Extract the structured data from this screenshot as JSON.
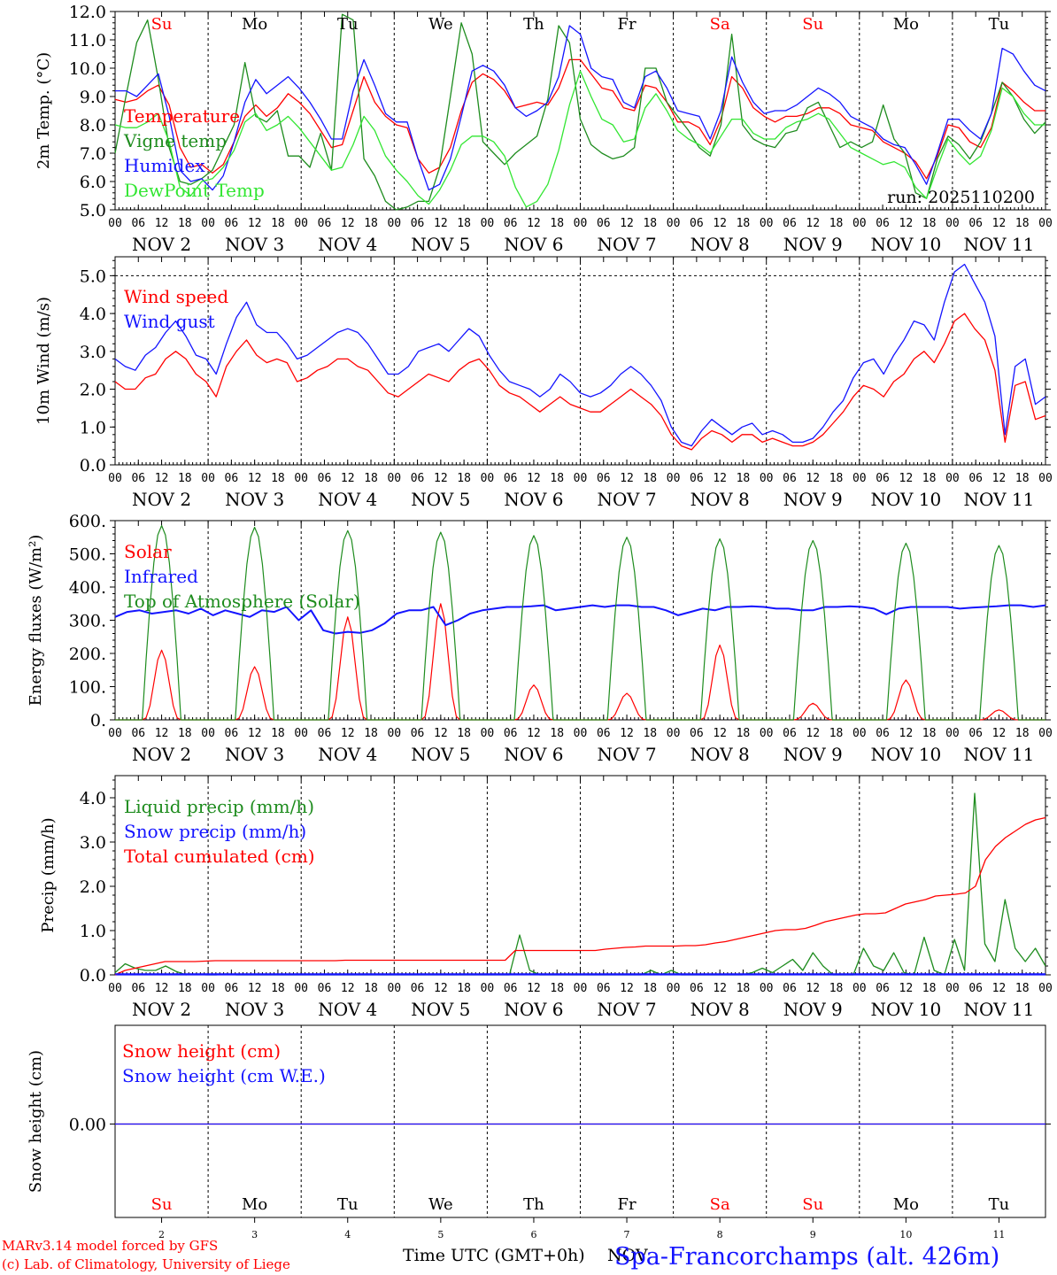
{
  "colors": {
    "red": "#ff0000",
    "green": "#1e8c1e",
    "blue": "#1414ff",
    "lightgreen": "#32e632",
    "black": "#000000"
  },
  "footer": {
    "credit_line1": "MARv3.14 model forced by GFS",
    "credit_line2": "(c) Lab. of Climatology, University of Liege",
    "xlabel": "Time UTC (GMT+0h)",
    "month": "NOV",
    "station": "Spa-Francorchamps (alt. 426m)"
  },
  "days": {
    "weekdays": [
      "Su",
      "Mo",
      "Tu",
      "We",
      "Th",
      "Fr",
      "Sa",
      "Su",
      "Mo",
      "Tu"
    ],
    "weekday_colors": [
      "red",
      "black",
      "black",
      "black",
      "black",
      "black",
      "red",
      "red",
      "black",
      "black"
    ],
    "date_labels": [
      "NOV  2",
      "NOV  3",
      "NOV  4",
      "NOV  5",
      "NOV  6",
      "NOV  7",
      "NOV  8",
      "NOV  9",
      "NOV 10",
      "NOV 11"
    ],
    "day_numbers": [
      "2",
      "3",
      "4",
      "5",
      "6",
      "7",
      "8",
      "9",
      "10",
      "11"
    ],
    "hour_ticks": [
      "00",
      "06",
      "12",
      "18"
    ],
    "final_tick": "00"
  },
  "chart_data": [
    {
      "type": "line",
      "id": "temp",
      "ylabel": "2m Temp. (°C)",
      "ylim": [
        5.0,
        12.0
      ],
      "yticks": [
        "5.0",
        "6.0",
        "7.0",
        "8.0",
        "9.0",
        "10.0",
        "11.0",
        "12.0"
      ],
      "ytick_values": [
        5,
        6,
        7,
        8,
        9,
        10,
        11,
        12
      ],
      "x_hours_step": 3,
      "annotation": "run: 2025110200",
      "series": [
        {
          "name": "Temperature",
          "color": "red",
          "values": [
            8.9,
            8.8,
            8.9,
            9.2,
            9.4,
            8.7,
            7.2,
            6.5,
            6.6,
            6.3,
            6.6,
            7.4,
            8.3,
            8.7,
            8.3,
            8.6,
            9.1,
            8.8,
            8.4,
            7.8,
            7.2,
            7.3,
            8.5,
            9.7,
            8.8,
            8.3,
            8.0,
            7.9,
            6.8,
            6.3,
            6.5,
            7.2,
            8.5,
            9.5,
            9.8,
            9.6,
            9.2,
            8.6,
            8.7,
            8.8,
            8.7,
            9.3,
            10.3,
            10.3,
            9.8,
            9.3,
            9.2,
            8.6,
            8.5,
            9.4,
            9.3,
            8.8,
            8.1,
            8.1,
            7.9,
            7.3,
            8.2,
            9.7,
            9.3,
            8.6,
            8.3,
            8.1,
            8.3,
            8.3,
            8.4,
            8.6,
            8.6,
            8.4,
            8.0,
            7.9,
            7.8,
            7.4,
            7.2,
            7.0,
            6.7,
            6.1,
            6.9,
            8.0,
            7.9,
            7.4,
            7.2,
            7.9,
            9.5,
            9.2,
            8.8,
            8.5,
            8.5
          ]
        },
        {
          "name": "Vigne temp",
          "color": "green",
          "values": [
            7.0,
            9.0,
            10.9,
            11.7,
            9.6,
            7.2,
            6.0,
            5.9,
            6.1,
            6.4,
            7.2,
            8.0,
            10.2,
            8.3,
            8.1,
            8.5,
            6.9,
            6.9,
            6.5,
            7.7,
            6.4,
            11.9,
            11.7,
            6.8,
            6.2,
            5.3,
            4.3,
            5.1,
            5.3,
            5.3,
            6.5,
            9.0,
            11.6,
            10.5,
            7.4,
            7.0,
            6.6,
            7.0,
            7.3,
            7.6,
            8.9,
            11.5,
            10.9,
            8.2,
            7.3,
            7.0,
            6.8,
            6.9,
            7.2,
            10.0,
            10.0,
            8.8,
            8.3,
            7.8,
            7.2,
            6.9,
            8.0,
            11.2,
            8.0,
            7.5,
            7.3,
            7.2,
            7.7,
            7.8,
            8.6,
            8.8,
            8.0,
            7.2,
            7.4,
            7.2,
            7.4,
            8.7,
            7.5,
            7.0,
            5.6,
            5.4,
            6.8,
            7.6,
            7.3,
            6.8,
            7.4,
            8.4,
            9.5,
            9.0,
            8.2,
            7.7,
            8.1
          ]
        },
        {
          "name": "Humidex",
          "color": "blue",
          "values": [
            9.2,
            9.2,
            9.0,
            9.4,
            9.8,
            8.3,
            6.4,
            6.0,
            6.1,
            5.7,
            6.2,
            7.4,
            8.8,
            9.6,
            9.1,
            9.4,
            9.7,
            9.3,
            8.8,
            8.2,
            7.5,
            7.5,
            9.2,
            10.3,
            9.4,
            8.4,
            8.1,
            8.1,
            6.8,
            5.7,
            5.9,
            6.8,
            8.3,
            9.9,
            10.1,
            9.9,
            9.4,
            8.6,
            8.3,
            8.5,
            8.8,
            9.7,
            11.5,
            11.2,
            10.0,
            9.7,
            9.6,
            8.8,
            8.6,
            9.7,
            9.9,
            9.3,
            8.5,
            8.4,
            8.3,
            7.5,
            8.5,
            10.4,
            9.5,
            8.8,
            8.4,
            8.5,
            8.5,
            8.7,
            9.0,
            9.3,
            9.1,
            8.8,
            8.3,
            8.1,
            7.9,
            7.5,
            7.3,
            7.2,
            6.6,
            5.9,
            7.0,
            8.2,
            8.2,
            7.8,
            7.5,
            8.4,
            10.7,
            10.5,
            9.9,
            9.4,
            9.2
          ]
        },
        {
          "name": "DewPoint Temp",
          "color": "lightgreen",
          "values": [
            8.0,
            7.9,
            7.9,
            8.1,
            8.4,
            7.4,
            5.8,
            5.5,
            6.0,
            6.1,
            6.5,
            7.1,
            8.1,
            8.4,
            7.8,
            8.0,
            8.3,
            7.9,
            7.4,
            6.9,
            6.4,
            6.5,
            7.3,
            8.3,
            7.8,
            6.9,
            6.4,
            6.0,
            5.5,
            5.2,
            5.7,
            6.4,
            7.3,
            7.6,
            7.6,
            7.4,
            6.9,
            5.8,
            5.1,
            5.3,
            5.9,
            7.1,
            8.7,
            9.9,
            9.0,
            8.2,
            8.0,
            7.4,
            7.5,
            8.6,
            9.1,
            8.5,
            7.8,
            7.5,
            7.3,
            7.0,
            7.6,
            8.2,
            8.2,
            7.7,
            7.5,
            7.5,
            7.9,
            8.1,
            8.2,
            8.4,
            8.2,
            7.7,
            7.2,
            7.0,
            6.8,
            6.6,
            6.7,
            6.5,
            5.8,
            5.4,
            6.5,
            7.5,
            7.0,
            6.6,
            6.9,
            7.8,
            9.3,
            9.0,
            8.4,
            8.0,
            8.0
          ]
        }
      ]
    },
    {
      "type": "line",
      "id": "wind",
      "ylabel": "10m Wind (m/s)",
      "ylim": [
        0.0,
        5.5
      ],
      "yticks": [
        "0.0",
        "1.0",
        "2.0",
        "3.0",
        "4.0",
        "5.0"
      ],
      "ytick_values": [
        0,
        1,
        2,
        3,
        4,
        5
      ],
      "ref_line": 5.0,
      "x_hours_step": 3,
      "series": [
        {
          "name": "Wind speed",
          "color": "red",
          "values": [
            2.2,
            2.0,
            2.0,
            2.3,
            2.4,
            2.8,
            3.0,
            2.8,
            2.4,
            2.2,
            1.8,
            2.6,
            3.0,
            3.3,
            2.9,
            2.7,
            2.8,
            2.7,
            2.2,
            2.3,
            2.5,
            2.6,
            2.8,
            2.8,
            2.6,
            2.5,
            2.2,
            1.9,
            1.8,
            2.0,
            2.2,
            2.4,
            2.3,
            2.2,
            2.5,
            2.7,
            2.8,
            2.5,
            2.1,
            1.9,
            1.8,
            1.6,
            1.4,
            1.6,
            1.8,
            1.6,
            1.5,
            1.4,
            1.4,
            1.6,
            1.8,
            2.0,
            1.8,
            1.6,
            1.3,
            0.8,
            0.5,
            0.4,
            0.7,
            0.9,
            0.8,
            0.6,
            0.8,
            0.8,
            0.6,
            0.7,
            0.6,
            0.5,
            0.5,
            0.6,
            0.8,
            1.1,
            1.4,
            1.8,
            2.1,
            2.0,
            1.8,
            2.2,
            2.4,
            2.8,
            3.0,
            2.7,
            3.2,
            3.8,
            4.0,
            3.6,
            3.3,
            2.5,
            0.6,
            2.1,
            2.2,
            1.2,
            1.3
          ]
        },
        {
          "name": "Wind gust",
          "color": "blue",
          "values": [
            2.8,
            2.6,
            2.5,
            2.9,
            3.1,
            3.5,
            3.8,
            3.4,
            2.9,
            2.8,
            2.4,
            3.2,
            3.9,
            4.3,
            3.7,
            3.5,
            3.5,
            3.2,
            2.8,
            2.9,
            3.1,
            3.3,
            3.5,
            3.6,
            3.5,
            3.2,
            2.8,
            2.4,
            2.4,
            2.6,
            3.0,
            3.1,
            3.2,
            3.0,
            3.3,
            3.6,
            3.4,
            2.9,
            2.5,
            2.2,
            2.1,
            2.0,
            1.8,
            2.0,
            2.4,
            2.2,
            1.9,
            1.8,
            1.9,
            2.1,
            2.4,
            2.6,
            2.4,
            2.1,
            1.7,
            1.0,
            0.6,
            0.5,
            0.9,
            1.2,
            1.0,
            0.8,
            1.0,
            1.1,
            0.8,
            0.9,
            0.8,
            0.6,
            0.6,
            0.7,
            1.0,
            1.4,
            1.7,
            2.3,
            2.7,
            2.8,
            2.4,
            2.9,
            3.3,
            3.8,
            3.7,
            3.3,
            4.3,
            5.1,
            5.3,
            4.8,
            4.3,
            3.4,
            0.8,
            2.6,
            2.8,
            1.6,
            1.8
          ]
        }
      ]
    },
    {
      "type": "line",
      "id": "flux",
      "ylabel": "Energy fluxes (W/m²)",
      "ylim": [
        0,
        600
      ],
      "yticks": [
        "0.",
        "100.",
        "200.",
        "300.",
        "400.",
        "500.",
        "600."
      ],
      "ytick_values": [
        0,
        100,
        200,
        300,
        400,
        500,
        600
      ],
      "x_hours_step": 1,
      "series": [
        {
          "name": "Solar",
          "color": "red",
          "day_peaks": [
            210,
            160,
            310,
            350,
            105,
            80,
            225,
            50,
            120,
            30
          ]
        },
        {
          "name": "Infrared",
          "color": "blue",
          "values": [
            310,
            325,
            330,
            320,
            325,
            330,
            320,
            335,
            315,
            330,
            320,
            310,
            330,
            325,
            340,
            300,
            330,
            270,
            260,
            265,
            262,
            270,
            290,
            320,
            330,
            330,
            340,
            285,
            300,
            320,
            330,
            335,
            340,
            340,
            342,
            345,
            330,
            335,
            340,
            345,
            340,
            345,
            345,
            340,
            340,
            330,
            315,
            325,
            335,
            330,
            340,
            340,
            342,
            340,
            335,
            335,
            330,
            330,
            340,
            340,
            342,
            340,
            335,
            318,
            335,
            340,
            340,
            340,
            340,
            335,
            338,
            340,
            342,
            345,
            345,
            340,
            345
          ]
        },
        {
          "name": "Top of Atmosphere (Solar)",
          "color": "green",
          "day_peaks": [
            585,
            580,
            570,
            565,
            555,
            550,
            545,
            540,
            532,
            525
          ]
        }
      ]
    },
    {
      "type": "line",
      "id": "precip",
      "ylabel": "Precip (mm/h)",
      "ylim": [
        0.0,
        4.5
      ],
      "yticks": [
        "0.0",
        "1.0",
        "2.0",
        "3.0",
        "4.0"
      ],
      "ytick_values": [
        0,
        1,
        2,
        3,
        4
      ],
      "x_hours_step": 3,
      "series": [
        {
          "name": "Liquid precip (mm/h)",
          "color": "green",
          "values": [
            0.05,
            0.25,
            0.15,
            0.1,
            0.1,
            0.2,
            0.08,
            0.0,
            0.02,
            0.0,
            0.0,
            0.02,
            0.0,
            0.0,
            0.0,
            0.0,
            0.0,
            0.0,
            0.0,
            0.0,
            0.0,
            0.0,
            0.0,
            0.0,
            0.0,
            0.0,
            0.0,
            0.0,
            0.0,
            0.0,
            0.0,
            0.0,
            0.0,
            0.0,
            0.0,
            0.0,
            0.0,
            0.0,
            0.0,
            0.0,
            0.9,
            0.1,
            0.0,
            0.0,
            0.0,
            0.0,
            0.0,
            0.0,
            0.0,
            0.0,
            0.0,
            0.0,
            0.0,
            0.1,
            0.0,
            0.1,
            0.0,
            0.0,
            0.0,
            0.0,
            0.0,
            0.0,
            0.0,
            0.05,
            0.15,
            0.05,
            0.2,
            0.35,
            0.1,
            0.5,
            0.2,
            0.0,
            0.0,
            0.0,
            0.6,
            0.2,
            0.1,
            0.5,
            0.05,
            0.0,
            0.85,
            0.1,
            0.0,
            0.8,
            0.1,
            4.1,
            0.7,
            0.3,
            1.7,
            0.6,
            0.3,
            0.6,
            0.2
          ]
        },
        {
          "name": "Snow precip (mm/h)",
          "color": "blue",
          "values": [
            0,
            0
          ]
        },
        {
          "name": "Total cumulated (cm)",
          "color": "red",
          "values": [
            0.0,
            0.1,
            0.15,
            0.2,
            0.25,
            0.3,
            0.3,
            0.3,
            0.3,
            0.31,
            0.32,
            0.32,
            0.32,
            0.32,
            0.32,
            0.32,
            0.32,
            0.32,
            0.32,
            0.32,
            0.32,
            0.32,
            0.32,
            0.33,
            0.33,
            0.33,
            0.33,
            0.33,
            0.33,
            0.33,
            0.33,
            0.33,
            0.33,
            0.33,
            0.33,
            0.33,
            0.33,
            0.33,
            0.33,
            0.33,
            0.55,
            0.55,
            0.55,
            0.55,
            0.55,
            0.55,
            0.55,
            0.55,
            0.55,
            0.58,
            0.6,
            0.62,
            0.63,
            0.65,
            0.65,
            0.65,
            0.65,
            0.66,
            0.66,
            0.68,
            0.72,
            0.75,
            0.8,
            0.85,
            0.9,
            0.95,
            1.0,
            1.02,
            1.02,
            1.05,
            1.12,
            1.2,
            1.25,
            1.3,
            1.35,
            1.38,
            1.38,
            1.4,
            1.5,
            1.6,
            1.65,
            1.7,
            1.78,
            1.8,
            1.82,
            1.85,
            2.0,
            2.6,
            2.9,
            3.1,
            3.25,
            3.4,
            3.5,
            3.55
          ]
        }
      ]
    },
    {
      "type": "line",
      "id": "snow",
      "ylabel": "Snow height (cm)",
      "ytick_label": "0.00",
      "series": [
        {
          "name": "Snow height (cm)",
          "color": "red",
          "values": [
            0,
            0
          ]
        },
        {
          "name": "Snow height (cm W.E.)",
          "color": "blue",
          "values": [
            0,
            0
          ]
        }
      ]
    }
  ]
}
